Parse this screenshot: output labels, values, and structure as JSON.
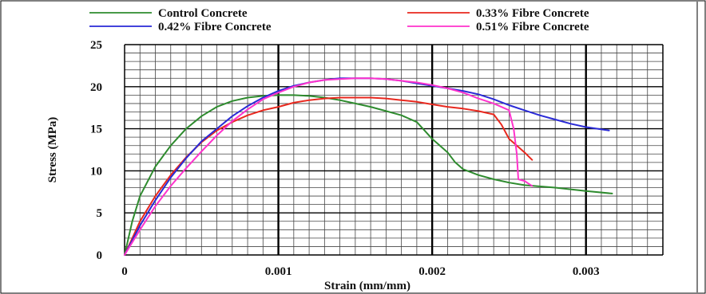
{
  "chart_data": {
    "type": "line",
    "xlabel": "Strain (mm/mm)",
    "ylabel": "Stress (MPa)",
    "xlim": [
      0,
      0.0035
    ],
    "ylim": [
      0,
      25
    ],
    "x_ticks": [
      "0",
      "0.001",
      "0.002",
      "0.003"
    ],
    "y_ticks": [
      "0",
      "5",
      "10",
      "15",
      "20",
      "25"
    ],
    "grid": true,
    "legend_position": "top",
    "series": [
      {
        "name": "Control Concrete",
        "color": "#2e8b2e",
        "points": [
          [
            0,
            0
          ],
          [
            5e-05,
            4
          ],
          [
            0.0001,
            7
          ],
          [
            0.0002,
            10.5
          ],
          [
            0.0003,
            13
          ],
          [
            0.0004,
            15
          ],
          [
            0.0005,
            16.5
          ],
          [
            0.0006,
            17.6
          ],
          [
            0.0007,
            18.3
          ],
          [
            0.0008,
            18.7
          ],
          [
            0.0009,
            18.9
          ],
          [
            0.001,
            19
          ],
          [
            0.0011,
            19
          ],
          [
            0.0012,
            18.9
          ],
          [
            0.0013,
            18.7
          ],
          [
            0.0014,
            18.4
          ],
          [
            0.0015,
            18
          ],
          [
            0.0016,
            17.6
          ],
          [
            0.0017,
            17.1
          ],
          [
            0.0018,
            16.6
          ],
          [
            0.0019,
            15.8
          ],
          [
            0.00195,
            14.8
          ],
          [
            0.002,
            13.8
          ],
          [
            0.00205,
            13
          ],
          [
            0.0021,
            12.2
          ],
          [
            0.00215,
            11
          ],
          [
            0.0022,
            10.2
          ],
          [
            0.0023,
            9.5
          ],
          [
            0.0024,
            9
          ],
          [
            0.0025,
            8.6
          ],
          [
            0.0026,
            8.3
          ],
          [
            0.0028,
            8
          ],
          [
            0.003,
            7.6
          ],
          [
            0.00317,
            7.3
          ]
        ]
      },
      {
        "name": "0.33% Fibre Concrete",
        "color": "#e8281e",
        "points": [
          [
            0,
            0
          ],
          [
            0.0001,
            4
          ],
          [
            0.0002,
            7
          ],
          [
            0.0003,
            9.5
          ],
          [
            0.0004,
            11.6
          ],
          [
            0.0005,
            13.4
          ],
          [
            0.0006,
            14.8
          ],
          [
            0.0007,
            15.8
          ],
          [
            0.0008,
            16.6
          ],
          [
            0.0009,
            17.2
          ],
          [
            0.001,
            17.6
          ],
          [
            0.0011,
            18.1
          ],
          [
            0.0012,
            18.4
          ],
          [
            0.0013,
            18.6
          ],
          [
            0.0014,
            18.7
          ],
          [
            0.0015,
            18.7
          ],
          [
            0.0016,
            18.7
          ],
          [
            0.0017,
            18.6
          ],
          [
            0.0018,
            18.4
          ],
          [
            0.0019,
            18.2
          ],
          [
            0.002,
            17.9
          ],
          [
            0.0021,
            17.6
          ],
          [
            0.0022,
            17.4
          ],
          [
            0.0023,
            17.1
          ],
          [
            0.0024,
            16.7
          ],
          [
            0.00245,
            15.5
          ],
          [
            0.0025,
            13.8
          ],
          [
            0.00255,
            13
          ],
          [
            0.0026,
            12.2
          ],
          [
            0.00265,
            11.3
          ]
        ]
      },
      {
        "name": "0.42% Fibre Concrete",
        "color": "#2a2ad6",
        "points": [
          [
            0,
            0
          ],
          [
            0.0001,
            3.5
          ],
          [
            0.0002,
            6.5
          ],
          [
            0.0003,
            9.2
          ],
          [
            0.0004,
            11.5
          ],
          [
            0.0005,
            13.5
          ],
          [
            0.0006,
            15
          ],
          [
            0.0007,
            16.5
          ],
          [
            0.0008,
            17.7
          ],
          [
            0.0009,
            18.7
          ],
          [
            0.001,
            19.5
          ],
          [
            0.0011,
            20.1
          ],
          [
            0.0012,
            20.5
          ],
          [
            0.0013,
            20.8
          ],
          [
            0.0014,
            21
          ],
          [
            0.0015,
            21
          ],
          [
            0.0016,
            21
          ],
          [
            0.0017,
            20.9
          ],
          [
            0.0018,
            20.7
          ],
          [
            0.0019,
            20.4
          ],
          [
            0.002,
            20.1
          ],
          [
            0.0021,
            19.8
          ],
          [
            0.0022,
            19.5
          ],
          [
            0.0023,
            19.1
          ],
          [
            0.0024,
            18.5
          ],
          [
            0.0025,
            17.8
          ],
          [
            0.0026,
            17.2
          ],
          [
            0.0027,
            16.6
          ],
          [
            0.0028,
            16.1
          ],
          [
            0.0029,
            15.6
          ],
          [
            0.003,
            15.2
          ],
          [
            0.00315,
            14.8
          ]
        ]
      },
      {
        "name": "0.51% Fibre Concrete",
        "color": "#ff33cc",
        "points": [
          [
            0,
            0
          ],
          [
            0.0001,
            3
          ],
          [
            0.0002,
            5.8
          ],
          [
            0.0003,
            8.2
          ],
          [
            0.0004,
            10.3
          ],
          [
            0.0005,
            12.3
          ],
          [
            0.0006,
            14.2
          ],
          [
            0.0007,
            15.9
          ],
          [
            0.0008,
            17.3
          ],
          [
            0.0009,
            18.5
          ],
          [
            0.001,
            19.3
          ],
          [
            0.0011,
            20
          ],
          [
            0.0012,
            20.5
          ],
          [
            0.0013,
            20.8
          ],
          [
            0.0014,
            20.9
          ],
          [
            0.0015,
            21
          ],
          [
            0.0016,
            21
          ],
          [
            0.0017,
            20.9
          ],
          [
            0.0018,
            20.7
          ],
          [
            0.0019,
            20.5
          ],
          [
            0.002,
            20.2
          ],
          [
            0.0021,
            19.8
          ],
          [
            0.0022,
            19.3
          ],
          [
            0.0023,
            18.6
          ],
          [
            0.0024,
            18
          ],
          [
            0.0025,
            17.2
          ],
          [
            0.00253,
            15
          ],
          [
            0.00255,
            12
          ],
          [
            0.00256,
            9
          ],
          [
            0.0026,
            8.8
          ],
          [
            0.00265,
            8.2
          ]
        ]
      }
    ]
  }
}
